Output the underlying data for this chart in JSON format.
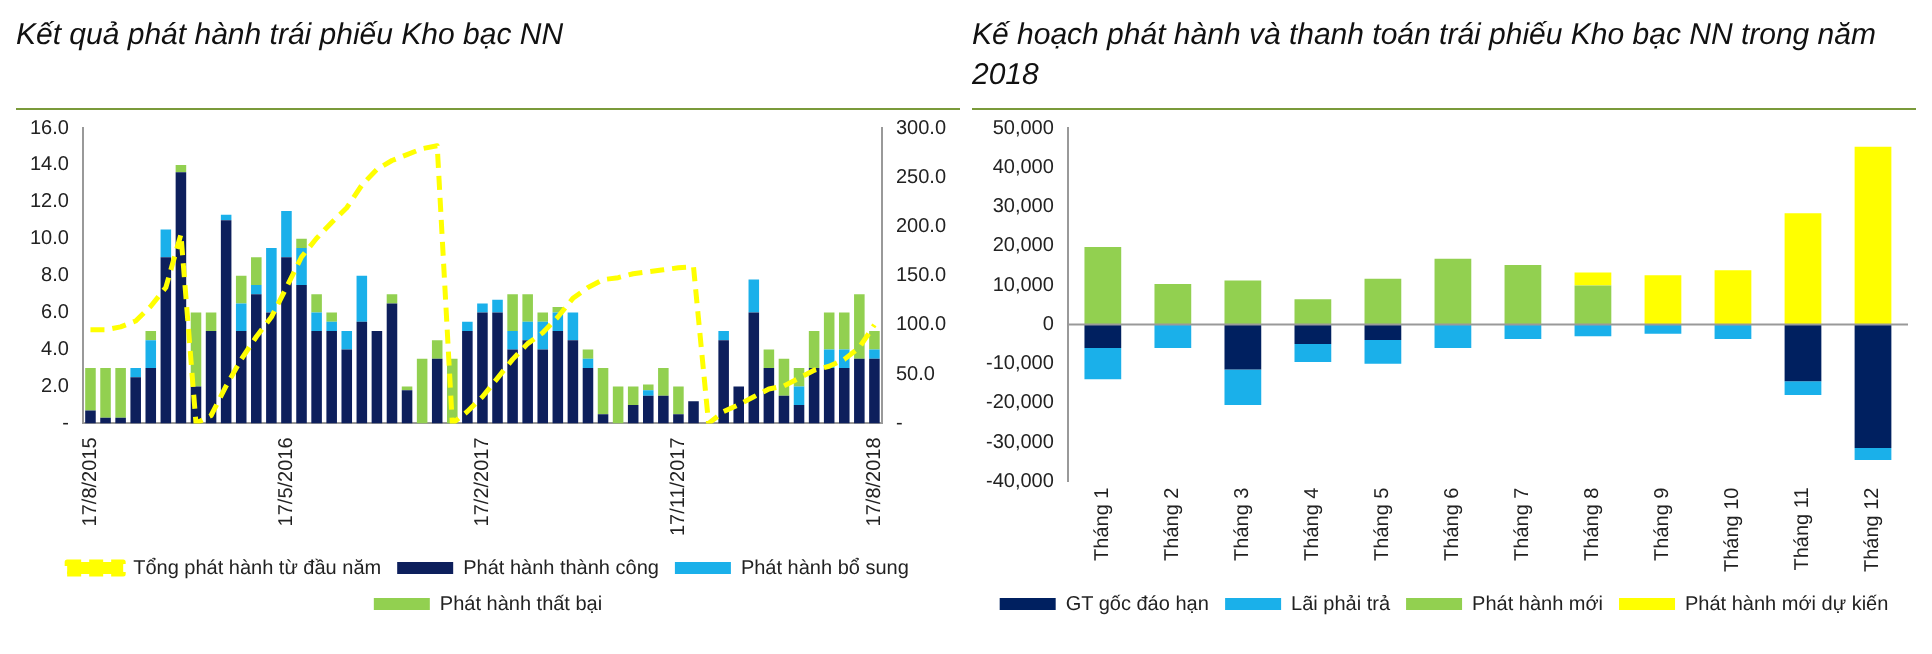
{
  "chart_data": [
    {
      "type": "bar",
      "title": "Kết quả phát hành trái phiếu Kho bạc NN",
      "stacked": true,
      "legend": "bottom",
      "categories": [
        "17/8/2015",
        null,
        null,
        null,
        null,
        null,
        null,
        null,
        null,
        null,
        null,
        null,
        null,
        "17/5/2016",
        null,
        null,
        null,
        null,
        null,
        null,
        null,
        null,
        null,
        null,
        null,
        null,
        "17/2/2017",
        null,
        null,
        null,
        null,
        null,
        null,
        null,
        null,
        null,
        null,
        null,
        null,
        "17/11/2017",
        null,
        null,
        null,
        null,
        null,
        null,
        null,
        null,
        null,
        null,
        null,
        null,
        "17/8/2018"
      ],
      "series": [
        {
          "name": "Phát hành thành công",
          "color": "#0d1f5c",
          "values": [
            0.7,
            0.3,
            0.3,
            2.5,
            3,
            9,
            13.6,
            2,
            5,
            11,
            5,
            7,
            6,
            9,
            7.5,
            5,
            5,
            4,
            5.5,
            5,
            6.5,
            1.8,
            0,
            3.5,
            null,
            5,
            6,
            6,
            4,
            4.5,
            4,
            5,
            4.5,
            3,
            0.5,
            0,
            1,
            1.5,
            1.5,
            0.5,
            1.2,
            0,
            4.5,
            2,
            6,
            3,
            1.5,
            1,
            3,
            3,
            3,
            3.5,
            3.5
          ]
        },
        {
          "name": "Phát hành bổ sung",
          "color": "#1ab0ea",
          "values": [
            0,
            0,
            0,
            0.5,
            1.5,
            1.5,
            0,
            0,
            0,
            0.3,
            1.5,
            0.5,
            3.5,
            2.5,
            2,
            1,
            0.5,
            1,
            2.5,
            0,
            0,
            0,
            0,
            0,
            0,
            0.5,
            0.5,
            0.7,
            1,
            1,
            1.5,
            1,
            1.5,
            0.5,
            0,
            0,
            0,
            0.3,
            0,
            0,
            0,
            0,
            0.5,
            0,
            1.8,
            0,
            0,
            1,
            0,
            1,
            1,
            0,
            0.5
          ]
        },
        {
          "name": "Phát hành thất bại",
          "color": "#92d050",
          "values": [
            2.3,
            2.7,
            2.7,
            0,
            0.5,
            0,
            0.4,
            4,
            1,
            0,
            1.5,
            1.5,
            0,
            0,
            0.5,
            1,
            0.5,
            0,
            0,
            0,
            0.5,
            0.2,
            3.5,
            1,
            3.5,
            0,
            0,
            0,
            2,
            1.5,
            0.5,
            0.3,
            0,
            0.5,
            2.5,
            2,
            1,
            0.3,
            1.5,
            1.5,
            0,
            0,
            0,
            0,
            0,
            1,
            2,
            1,
            2,
            2,
            2,
            3.5,
            1
          ]
        },
        {
          "name": "Tổng phát hành từ đầu năm",
          "type": "line",
          "axis": "y2",
          "color": "#ffff00",
          "line_style": "dashed",
          "marker": "none",
          "values": [
            95,
            95,
            98,
            104,
            119,
            138,
            192,
            0,
            8,
            38,
            65,
            88,
            108,
            138,
            169,
            188,
            204,
            219,
            242,
            258,
            267,
            273,
            279,
            282,
            0,
            12,
            27,
            46,
            65,
            81,
            92,
            108,
            127,
            138,
            146,
            148,
            152,
            154,
            156,
            158,
            159,
            0,
            12,
            19,
            27,
            35,
            38,
            46,
            54,
            58,
            65,
            77,
            100
          ]
        }
      ],
      "ylim": [
        0,
        16
      ],
      "yticks": [
        {
          "value": 0,
          "label": "-"
        },
        {
          "value": 2,
          "label": "2.0"
        },
        {
          "value": 4,
          "label": "4.0"
        },
        {
          "value": 6,
          "label": "6.0"
        },
        {
          "value": 8,
          "label": "8.0"
        },
        {
          "value": 10,
          "label": "10.0"
        },
        {
          "value": 12,
          "label": "12.0"
        },
        {
          "value": 14,
          "label": "14.0"
        },
        {
          "value": 16,
          "label": "16.0"
        }
      ],
      "y2lim": [
        0,
        300
      ],
      "y2ticks": [
        {
          "value": 0,
          "label": "-"
        },
        {
          "value": 50,
          "label": "50.0"
        },
        {
          "value": 100,
          "label": "100.0"
        },
        {
          "value": 150,
          "label": "150.0"
        },
        {
          "value": 200,
          "label": "200.0"
        },
        {
          "value": 250,
          "label": "250.0"
        },
        {
          "value": 300,
          "label": "300.0"
        }
      ]
    },
    {
      "type": "bar",
      "title": "Kế hoạch phát hành và thanh toán trái phiếu Kho bạc NN trong năm 2018",
      "stacked": true,
      "legend": "bottom",
      "categories": [
        "Tháng 1",
        "Tháng 2",
        "Tháng 3",
        "Tháng 4",
        "Tháng 5",
        "Tháng 6",
        "Tháng 7",
        "Tháng 8",
        "Tháng 9",
        "Tháng 10",
        "Tháng 11",
        "Tháng 12"
      ],
      "series": [
        {
          "name": "GT gốc đáo hạn",
          "color": "#002060",
          "values": [
            -6000,
            0,
            -11500,
            -5000,
            -4000,
            0,
            0,
            0,
            0,
            0,
            -14500,
            -31500
          ]
        },
        {
          "name": "Lãi phải trả",
          "color": "#1ab0ea",
          "values": [
            -8000,
            -6000,
            -9000,
            -4600,
            -6000,
            -6000,
            -3700,
            -3000,
            -2400,
            -3700,
            -3500,
            -3000
          ]
        },
        {
          "name": "Phát hành mới",
          "color": "#92d050",
          "values": [
            19700,
            10300,
            11200,
            6400,
            11600,
            16700,
            15100,
            9900,
            0,
            0,
            0,
            0
          ]
        },
        {
          "name": "Phát hành mới dự kiến",
          "color": "#ffff00",
          "values": [
            0,
            0,
            0,
            0,
            0,
            0,
            0,
            3300,
            12500,
            13800,
            28300,
            45200
          ]
        }
      ],
      "ylim": [
        -40000,
        50000
      ],
      "yticks": [
        {
          "value": -40000,
          "label": "-40,000"
        },
        {
          "value": -30000,
          "label": "-30,000"
        },
        {
          "value": -20000,
          "label": "-20,000"
        },
        {
          "value": -10000,
          "label": "-10,000"
        },
        {
          "value": 0,
          "label": "0"
        },
        {
          "value": 10000,
          "label": "10,000"
        },
        {
          "value": 20000,
          "label": "20,000"
        },
        {
          "value": 30000,
          "label": "30,000"
        },
        {
          "value": 40000,
          "label": "40,000"
        },
        {
          "value": 50000,
          "label": "50,000"
        }
      ]
    }
  ]
}
